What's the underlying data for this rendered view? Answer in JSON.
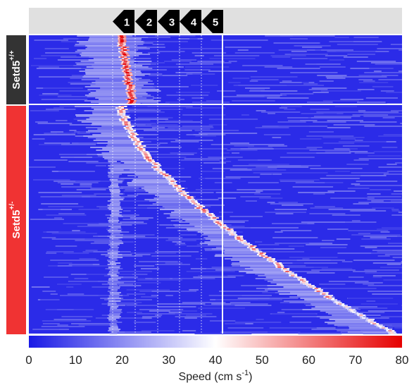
{
  "chart_data": {
    "type": "heatmap",
    "colormap": [
      "#1a1ae6",
      "#ffffff",
      "#e60000"
    ],
    "colorbar": {
      "min": 0,
      "max": 80,
      "ticks": [
        "0",
        "10",
        "20",
        "30",
        "40",
        "50",
        "60",
        "70",
        "80"
      ],
      "label_main": "Speed (cm s",
      "label_sup": "-1",
      "label_tail": ")"
    },
    "groups": [
      {
        "name_main": "Setd5",
        "name_sup": "+/+",
        "color": "#333333"
      },
      {
        "name_main": "Setd5",
        "name_sup": "+/-",
        "color": "#f03333"
      }
    ],
    "markers": [
      "1",
      "2",
      "3",
      "4",
      "5"
    ],
    "background_speed": 3,
    "peak_speed": 80
  }
}
